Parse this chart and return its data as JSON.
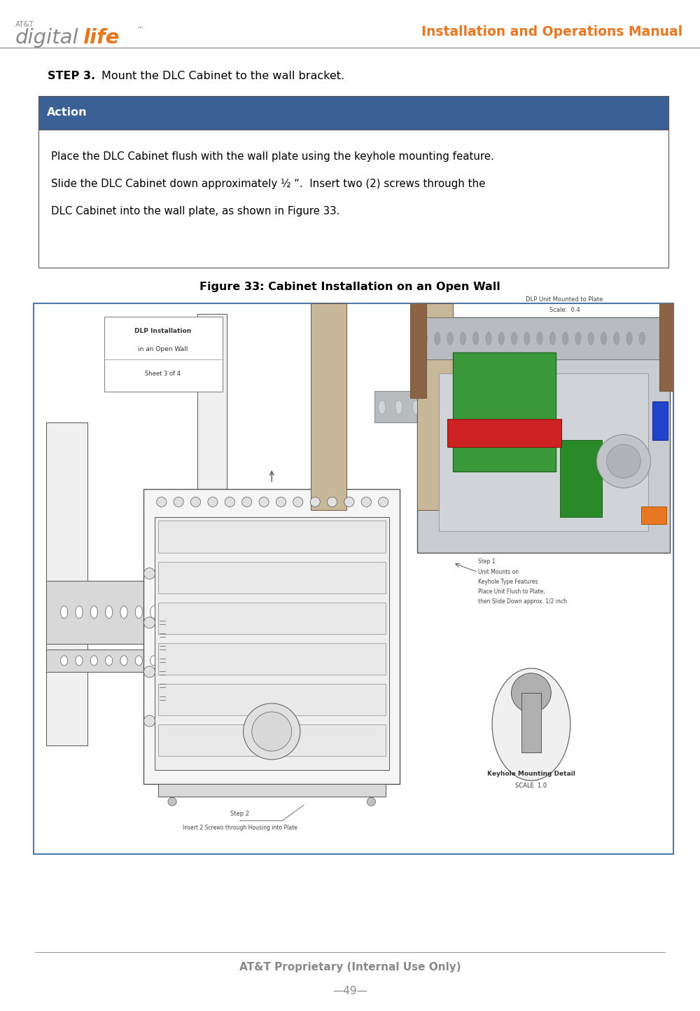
{
  "page_width": 10.0,
  "page_height": 14.43,
  "dpi": 100,
  "bg_color": "#ffffff",
  "header_line_color": "#999999",
  "header_title": "Installation and Operations Manual",
  "header_title_color": "#E87722",
  "header_logo_text1": "AT&T",
  "header_logo_digital": "digital",
  "header_logo_life": "life™",
  "header_logo_gray": "#888888",
  "header_logo_orange": "#E87722",
  "step_label": "STEP 3.",
  "step_text": "    Mount the DLC Cabinet to the wall bracket.",
  "action_header_text": "Action",
  "action_header_bg": "#3a6096",
  "action_header_text_color": "#ffffff",
  "action_body_lines": [
    "Place the DLC Cabinet flush with the wall plate using the keyhole mounting feature.",
    "Slide the DLC Cabinet down approximately ½ “.  Insert two (2) screws through the",
    "DLC Cabinet into the wall plate, as shown in Figure 33."
  ],
  "figure_caption": "Figure 33: Cabinet Installation on an Open Wall",
  "footer_text": "AT&T Proprietary (Internal Use Only)",
  "footer_page": "—49—",
  "footer_text_color": "#888888",
  "footer_line_color": "#999999",
  "table_border_color": "#555555",
  "fig_border_color": "#4a7aaa"
}
